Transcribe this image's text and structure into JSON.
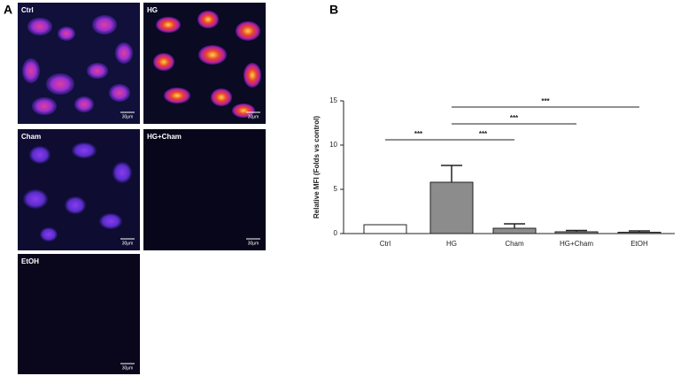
{
  "panel_a": {
    "label": "A",
    "images": [
      {
        "label": "Ctrl",
        "scale": "30μm"
      },
      {
        "label": "HG",
        "scale": "30μm"
      },
      {
        "label": "Cham",
        "scale": "30μm"
      },
      {
        "label": "HG+Cham",
        "scale": "30μm"
      },
      {
        "label": "EtOH",
        "scale": "30μm"
      }
    ]
  },
  "chart_data": {
    "type": "bar",
    "panel_label": "B",
    "y_label": "Relative MFI (Folds vs control)",
    "categories": [
      "Ctrl",
      "HG",
      "Cham",
      "HG+Cham",
      "EtOH"
    ],
    "values": [
      1.0,
      5.8,
      0.6,
      0.2,
      0.15
    ],
    "errors": [
      0,
      1.9,
      0.5,
      0.15,
      0.15
    ],
    "colors": [
      "#ffffff",
      "#8c8c8c",
      "#8c8c8c",
      "#8c8c8c",
      "#8c8c8c"
    ],
    "ylim": [
      0,
      15
    ],
    "yticks": [
      0,
      5,
      10,
      15
    ],
    "comparisons": [
      {
        "label": "***",
        "groups": [
          "Ctrl",
          "HG"
        ]
      },
      {
        "label": "***",
        "groups": [
          "HG",
          "Cham"
        ]
      },
      {
        "label": "***",
        "groups": [
          "HG",
          "HG+Cham"
        ]
      },
      {
        "label": "***",
        "groups": [
          "HG",
          "EtOH"
        ]
      }
    ]
  }
}
